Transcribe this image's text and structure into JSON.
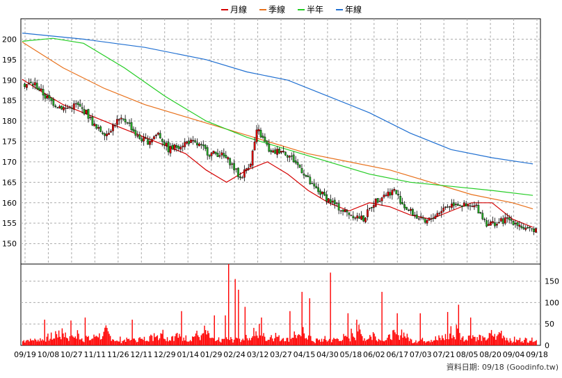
{
  "chart_data": {
    "type": "candlestick",
    "legend": [
      {
        "name": "月線",
        "color": "#d40000"
      },
      {
        "name": "季線",
        "color": "#e8701a"
      },
      {
        "name": "半年",
        "color": "#22cc22"
      },
      {
        "name": "年線",
        "color": "#1f6fd1"
      }
    ],
    "legend_placement": "top-center",
    "price_axis": {
      "side": "left",
      "ylim": [
        145,
        205
      ],
      "ticks": [
        150,
        155,
        160,
        165,
        170,
        175,
        180,
        185,
        190,
        195,
        200
      ]
    },
    "volume_axis": {
      "side": "right",
      "ylim": [
        0,
        190
      ],
      "ticks": [
        0,
        50,
        100,
        150
      ]
    },
    "grid": true,
    "x_ticks": [
      "09/19",
      "10/08",
      "10/27",
      "11/11",
      "11/26",
      "12/11",
      "12/29",
      "01/14",
      "01/29",
      "02/24",
      "03/12",
      "03/27",
      "04/15",
      "04/30",
      "05/18",
      "06/02",
      "06/17",
      "07/03",
      "07/21",
      "08/05",
      "08/20",
      "09/04",
      "09/18"
    ],
    "footer": "資料日期: 09/18 (Goodinfo.tw)",
    "colors": {
      "up": "#e00000",
      "down": "#22aa22",
      "volume": "#ff0000"
    },
    "ma_anchors": {
      "月線": [
        [
          0,
          190.2
        ],
        [
          10,
          187
        ],
        [
          20,
          184
        ],
        [
          30,
          182
        ],
        [
          40,
          180
        ],
        [
          50,
          178
        ],
        [
          60,
          176
        ],
        [
          70,
          174
        ],
        [
          80,
          172
        ],
        [
          90,
          168
        ],
        [
          100,
          165
        ],
        [
          110,
          168
        ],
        [
          120,
          170
        ],
        [
          130,
          167
        ],
        [
          140,
          163
        ],
        [
          150,
          160
        ],
        [
          160,
          158
        ],
        [
          170,
          160
        ],
        [
          180,
          159
        ],
        [
          190,
          157
        ],
        [
          200,
          156
        ],
        [
          210,
          158
        ],
        [
          220,
          160
        ],
        [
          230,
          160
        ],
        [
          240,
          156
        ],
        [
          250,
          154
        ]
      ],
      "季線": [
        [
          0,
          199.3
        ],
        [
          20,
          193
        ],
        [
          40,
          188
        ],
        [
          60,
          184
        ],
        [
          80,
          181
        ],
        [
          100,
          178
        ],
        [
          120,
          175
        ],
        [
          140,
          172
        ],
        [
          160,
          170
        ],
        [
          180,
          168
        ],
        [
          200,
          165
        ],
        [
          220,
          162
        ],
        [
          240,
          160
        ],
        [
          250,
          158.5
        ]
      ],
      "半年": [
        [
          0,
          199.5
        ],
        [
          15,
          200.2
        ],
        [
          30,
          199
        ],
        [
          50,
          193
        ],
        [
          70,
          186
        ],
        [
          90,
          180
        ],
        [
          110,
          176
        ],
        [
          130,
          173
        ],
        [
          150,
          170
        ],
        [
          170,
          167
        ],
        [
          190,
          165
        ],
        [
          210,
          164
        ],
        [
          230,
          163
        ],
        [
          250,
          161.8
        ]
      ],
      "年線": [
        [
          0,
          201.5
        ],
        [
          30,
          200
        ],
        [
          60,
          198
        ],
        [
          90,
          195
        ],
        [
          110,
          192
        ],
        [
          130,
          190
        ],
        [
          150,
          186
        ],
        [
          170,
          182
        ],
        [
          190,
          177
        ],
        [
          210,
          173
        ],
        [
          230,
          171
        ],
        [
          250,
          169.5
        ]
      ]
    },
    "price_path": [
      [
        0,
        189
      ],
      [
        6,
        189
      ],
      [
        12,
        186
      ],
      [
        18,
        184
      ],
      [
        24,
        183
      ],
      [
        30,
        184
      ],
      [
        36,
        182
      ],
      [
        42,
        178
      ],
      [
        48,
        177
      ],
      [
        54,
        180
      ],
      [
        60,
        180
      ],
      [
        66,
        176
      ],
      [
        72,
        175
      ],
      [
        78,
        177
      ],
      [
        84,
        173
      ],
      [
        90,
        174
      ],
      [
        96,
        175
      ],
      [
        102,
        174
      ],
      [
        108,
        172
      ],
      [
        114,
        172
      ],
      [
        120,
        170
      ],
      [
        126,
        166
      ],
      [
        132,
        170
      ],
      [
        136,
        178
      ],
      [
        140,
        175
      ],
      [
        144,
        172
      ],
      [
        150,
        173
      ],
      [
        156,
        171
      ],
      [
        162,
        168
      ],
      [
        168,
        164
      ],
      [
        174,
        162
      ],
      [
        180,
        160
      ],
      [
        186,
        158
      ],
      [
        192,
        157
      ],
      [
        198,
        156
      ],
      [
        204,
        160
      ],
      [
        210,
        162
      ],
      [
        216,
        163
      ],
      [
        222,
        159
      ],
      [
        228,
        157
      ],
      [
        234,
        155
      ],
      [
        240,
        157
      ],
      [
        246,
        159
      ],
      [
        252,
        160
      ],
      [
        258,
        159
      ],
      [
        264,
        159
      ],
      [
        270,
        155
      ],
      [
        276,
        155
      ],
      [
        282,
        156
      ],
      [
        288,
        155
      ],
      [
        294,
        153
      ],
      [
        300,
        154
      ],
      [
        302,
        156
      ]
    ],
    "volume_base": [
      10,
      12,
      11,
      15,
      14,
      13,
      16,
      12,
      11,
      14,
      15,
      13,
      12,
      16,
      14,
      13,
      15,
      17,
      14,
      12,
      18,
      16,
      15,
      20,
      18,
      17,
      22,
      20,
      18,
      16,
      30,
      35,
      28,
      25,
      22,
      20,
      40,
      35,
      30,
      25,
      22,
      20,
      18,
      16,
      14,
      18,
      22,
      25,
      20,
      18,
      30,
      25,
      22,
      20,
      18,
      16,
      14,
      22,
      20,
      18,
      16,
      15,
      14,
      16,
      18,
      20,
      22,
      25,
      28,
      26,
      24,
      22,
      20,
      18,
      25,
      30,
      35,
      32,
      28,
      25,
      22,
      20,
      18,
      16,
      14,
      12,
      10,
      8,
      12,
      15
    ],
    "volume_spikes": [
      [
        20,
        60
      ],
      [
        44,
        58
      ],
      [
        57,
        65
      ],
      [
        100,
        60
      ],
      [
        145,
        80
      ],
      [
        175,
        70
      ],
      [
        185,
        70
      ],
      [
        188,
        190
      ],
      [
        194,
        155
      ],
      [
        197,
        130
      ],
      [
        203,
        90
      ],
      [
        218,
        65
      ],
      [
        244,
        80
      ],
      [
        255,
        125
      ],
      [
        262,
        110
      ],
      [
        281,
        170
      ],
      [
        297,
        75
      ],
      [
        305,
        60
      ],
      [
        328,
        125
      ],
      [
        342,
        75
      ],
      [
        363,
        75
      ],
      [
        388,
        78
      ],
      [
        398,
        95
      ],
      [
        409,
        65
      ]
    ]
  }
}
